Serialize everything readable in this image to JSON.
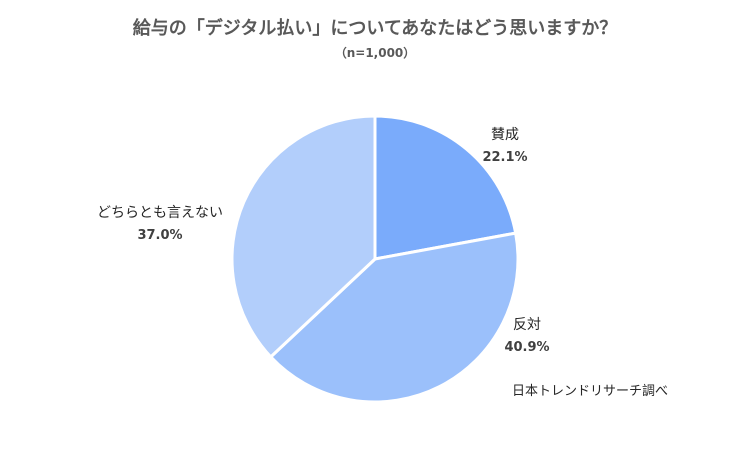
{
  "chart_data": {
    "type": "pie",
    "title": "給与の「デジタル払い」についてあなたはどう思いますか？",
    "subtitle": "（n=1,000）",
    "source": "日本トレンドリサーチ調べ",
    "slices": [
      {
        "label": "賛成",
        "value": 22.1,
        "value_label": "22.1%",
        "color": "#7aabfb"
      },
      {
        "label": "反対",
        "value": 40.9,
        "value_label": "40.9%",
        "color": "#9bc0fb"
      },
      {
        "label": "どちらとも言えない",
        "value": 37.0,
        "value_label": "37.0%",
        "color": "#b2cefb"
      }
    ],
    "start_angle": "12 o'clock",
    "direction": "clockwise",
    "legend": "none"
  }
}
